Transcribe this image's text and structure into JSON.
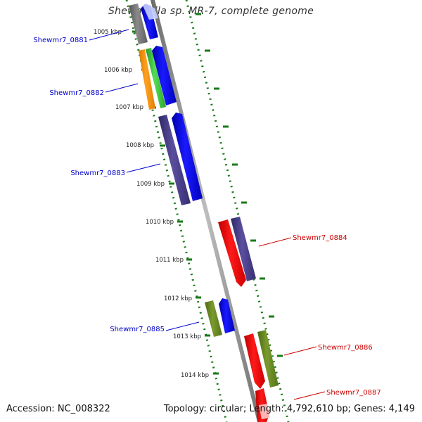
{
  "title": "Shewanella sp. MR-7, complete genome",
  "accession": "Accession: NC_008322",
  "topology": "Topology: circular; Length: 4,792,610 bp; Genes: 4,149",
  "kbp_labels": [
    "1005 kbp",
    "1006 kbp",
    "1007 kbp",
    "1008 kbp",
    "1009 kbp",
    "1010 kbp",
    "1011 kbp",
    "1012 kbp",
    "1013 kbp",
    "1014 kbp"
  ],
  "gene_labels": [
    {
      "text": "Shewmr7_0881",
      "color": "#0000cc"
    },
    {
      "text": "Shewmr7_0882",
      "color": "#0000cc"
    },
    {
      "text": "Shewmr7_0883",
      "color": "#0000cc"
    },
    {
      "text": "Shewmr7_0884",
      "color": "#cc0000"
    },
    {
      "text": "Shewmr7_0885",
      "color": "#0000cc"
    },
    {
      "text": "Shewmr7_0886",
      "color": "#cc0000"
    },
    {
      "text": "Shewmr7_0887",
      "color": "#cc0000"
    }
  ],
  "colors": {
    "backbone": "#888888",
    "ruler_dots": "#1a7a1a",
    "forward_gene": "#0000ee",
    "reverse_gene": "#ee0000",
    "purple_feature": "#4a3f8a",
    "olive_feature": "#6b8a22",
    "orange_feature": "#f39010",
    "green_feature": "#44cc44",
    "gray_feature": "#7a7a7a"
  }
}
